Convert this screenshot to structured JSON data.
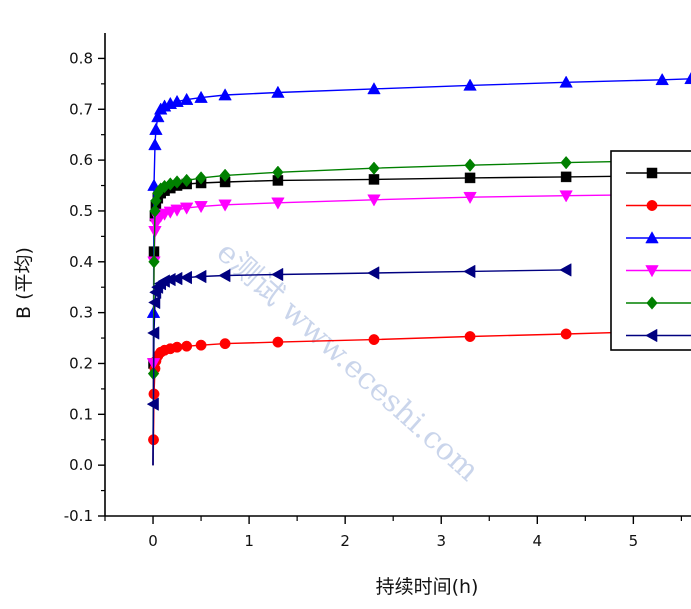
{
  "chart_data": {
    "type": "line",
    "ylabel": "B (平均)",
    "xlabel": "持续时间(h)",
    "xlim": [
      -0.5,
      5.6
    ],
    "ylim": [
      -0.1,
      0.85
    ],
    "x_ticks": [
      "0",
      "1",
      "2",
      "3",
      "4",
      "5"
    ],
    "y_ticks": [
      "-0.1",
      "0.0",
      "0.1",
      "0.2",
      "0.3",
      "0.4",
      "0.5",
      "0.6",
      "0.7",
      "0.8"
    ],
    "legend_position": "right",
    "grid": false,
    "watermark": "e测试 www.eceshi.com",
    "series": [
      {
        "marker": "square",
        "color": "#000000",
        "x": [
          0,
          0.005,
          0.01,
          0.02,
          0.03,
          0.05,
          0.08,
          0.12,
          0.18,
          0.25,
          0.35,
          0.5,
          0.75,
          1.3,
          2.3,
          3.3,
          4.3,
          5.6
        ],
        "y": [
          0,
          0.2,
          0.42,
          0.49,
          0.51,
          0.525,
          0.535,
          0.54,
          0.545,
          0.55,
          0.553,
          0.555,
          0.557,
          0.56,
          0.562,
          0.565,
          0.567,
          0.57
        ]
      },
      {
        "marker": "circle",
        "color": "#ff0000",
        "x": [
          0,
          0.005,
          0.01,
          0.02,
          0.03,
          0.05,
          0.08,
          0.12,
          0.18,
          0.25,
          0.35,
          0.5,
          0.75,
          1.3,
          2.3,
          3.3,
          4.3,
          5.6
        ],
        "y": [
          0,
          0.05,
          0.14,
          0.19,
          0.205,
          0.215,
          0.222,
          0.226,
          0.229,
          0.232,
          0.234,
          0.236,
          0.239,
          0.242,
          0.247,
          0.253,
          0.258,
          0.265
        ]
      },
      {
        "marker": "triangle-up",
        "color": "#0000ff",
        "x": [
          0,
          0.005,
          0.01,
          0.02,
          0.03,
          0.05,
          0.08,
          0.12,
          0.18,
          0.25,
          0.35,
          0.5,
          0.75,
          1.3,
          2.3,
          3.3,
          4.3,
          5.3,
          5.6
        ],
        "y": [
          0,
          0.3,
          0.55,
          0.63,
          0.66,
          0.685,
          0.7,
          0.706,
          0.711,
          0.715,
          0.719,
          0.723,
          0.728,
          0.733,
          0.74,
          0.747,
          0.753,
          0.758,
          0.76
        ]
      },
      {
        "marker": "triangle-down",
        "color": "#ff00ff",
        "x": [
          0,
          0.005,
          0.01,
          0.02,
          0.03,
          0.05,
          0.08,
          0.12,
          0.18,
          0.25,
          0.35,
          0.5,
          0.75,
          1.3,
          2.3,
          3.3,
          4.3,
          5.6
        ],
        "y": [
          0,
          0.2,
          0.4,
          0.46,
          0.475,
          0.485,
          0.49,
          0.494,
          0.498,
          0.502,
          0.506,
          0.509,
          0.512,
          0.516,
          0.522,
          0.527,
          0.53,
          0.533
        ]
      },
      {
        "marker": "diamond",
        "color": "#008000",
        "x": [
          0,
          0.005,
          0.01,
          0.02,
          0.03,
          0.05,
          0.08,
          0.12,
          0.18,
          0.25,
          0.35,
          0.5,
          0.75,
          1.3,
          2.3,
          3.3,
          4.3,
          5.6
        ],
        "y": [
          0,
          0.18,
          0.4,
          0.5,
          0.52,
          0.535,
          0.543,
          0.548,
          0.553,
          0.557,
          0.56,
          0.565,
          0.57,
          0.576,
          0.584,
          0.59,
          0.595,
          0.6
        ]
      },
      {
        "marker": "triangle-left",
        "color": "#000080",
        "x": [
          0,
          0.005,
          0.01,
          0.02,
          0.03,
          0.05,
          0.08,
          0.12,
          0.18,
          0.25,
          0.35,
          0.5,
          0.75,
          1.3,
          2.3,
          3.3,
          4.3
        ],
        "y": [
          0,
          0.12,
          0.26,
          0.32,
          0.34,
          0.35,
          0.357,
          0.362,
          0.365,
          0.367,
          0.369,
          0.371,
          0.373,
          0.375,
          0.378,
          0.381,
          0.384
        ]
      }
    ]
  }
}
